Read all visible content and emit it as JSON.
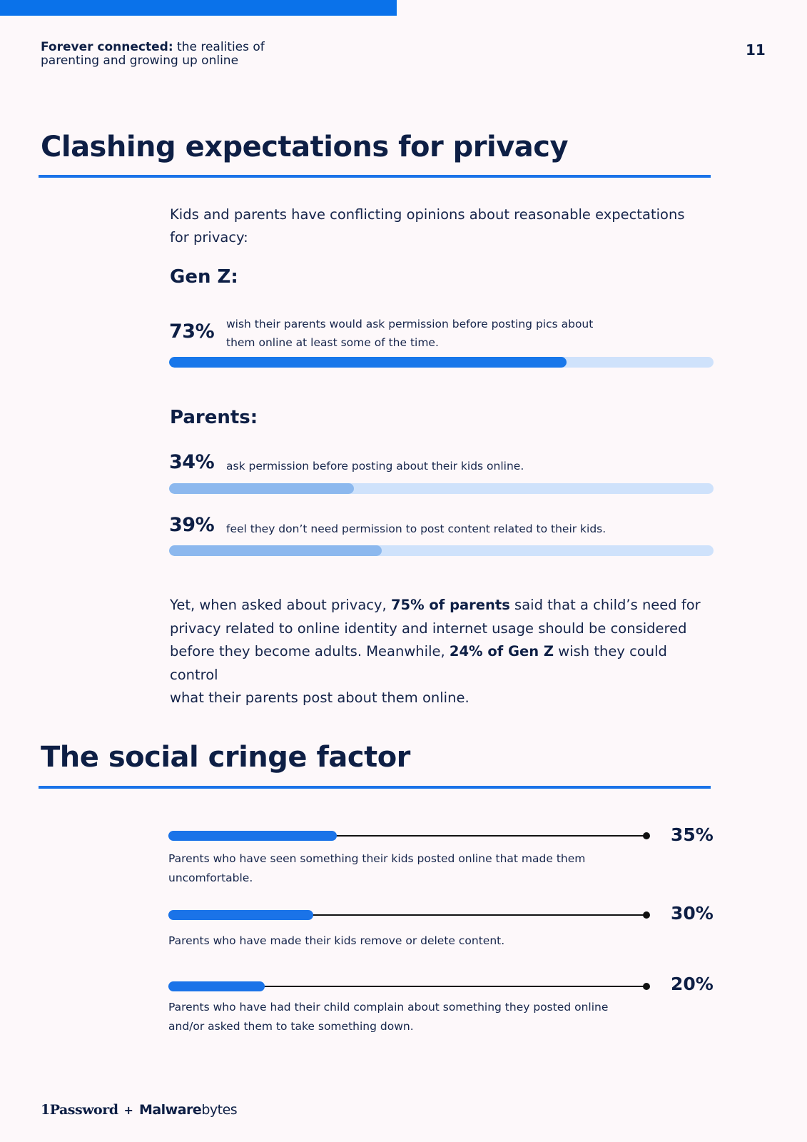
{
  "header": {
    "title_bold": "Forever connected:",
    "title_rest_1": "the realities of",
    "title_rest_2": "parenting and growing up online",
    "page_number": "11"
  },
  "privacy": {
    "heading": "Clashing expectations for privacy",
    "intro_1": "Kids and parents have conflicting opinions about reasonable expectations",
    "intro_2": "for privacy:",
    "genz_label": "Gen Z:",
    "genz_stat": {
      "pct": "73%",
      "text_1": "wish their parents would ask permission before posting pics about",
      "text_2": "them online at least some of the time.",
      "value": 73
    },
    "parents_label": "Parents:",
    "parents_stats": [
      {
        "pct": "34%",
        "text": "ask permission before posting about their kids online.",
        "value": 34
      },
      {
        "pct": "39%",
        "text": "feel they don’t need permission to post content related to their kids.",
        "value": 39
      }
    ],
    "para": {
      "l1a": "Yet, when asked about privacy, ",
      "l1b": "75% of parents",
      "l1c": " said that a child’s need for",
      "l2": "privacy related to online identity and internet usage should be considered",
      "l3a": "before they become adults. Meanwhile, ",
      "l3b": "24% of Gen Z",
      "l3c": " wish they could control",
      "l4": "what their parents post about them online."
    }
  },
  "cringe": {
    "heading": "The social cringe factor",
    "items": [
      {
        "pct": "35%",
        "text_1": "Parents who have seen something their kids posted online that made them",
        "text_2": "uncomfortable.",
        "value": 35
      },
      {
        "pct": "30%",
        "text_1": "Parents who have made their kids remove or delete content.",
        "text_2": "",
        "value": 30
      },
      {
        "pct": "20%",
        "text_1": "Parents who have had their child complain about something they posted online",
        "text_2": "and/or asked them to take something down.",
        "value": 20
      }
    ]
  },
  "footer": {
    "logo_1password": "1Password",
    "plus": "+",
    "logo_malware_bold": "Malware",
    "logo_malware_rest": "bytes"
  }
}
